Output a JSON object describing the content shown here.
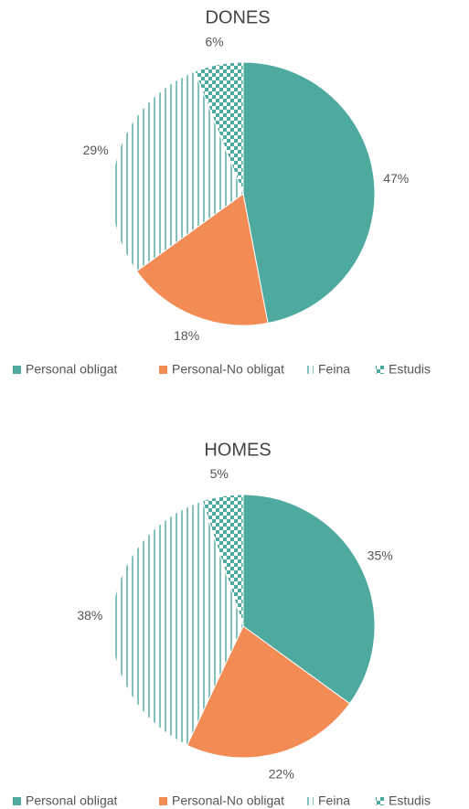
{
  "chart_data": [
    {
      "type": "pie",
      "title": "DONES",
      "categories": [
        "Personal obligat",
        "Personal-No obligat",
        "Feina",
        "Estudis"
      ],
      "values": [
        47,
        18,
        29,
        6
      ],
      "value_labels": [
        "47%",
        "18%",
        "29%",
        "6%"
      ],
      "colors": [
        "#4ea99f",
        "#f28b54",
        "#4ea99f",
        "#4ea99f"
      ],
      "fills": [
        "solid",
        "solid",
        "vertical-lines",
        "checker"
      ],
      "legend": "bottom"
    },
    {
      "type": "pie",
      "title": "HOMES",
      "categories": [
        "Personal obligat",
        "Personal-No obligat",
        "Feina",
        "Estudis"
      ],
      "values": [
        35,
        22,
        38,
        5
      ],
      "value_labels": [
        "35%",
        "22%",
        "38%",
        "5%"
      ],
      "colors": [
        "#4ea99f",
        "#f28b54",
        "#4ea99f",
        "#4ea99f"
      ],
      "fills": [
        "solid",
        "solid",
        "vertical-lines",
        "checker"
      ],
      "legend": "bottom"
    }
  ]
}
